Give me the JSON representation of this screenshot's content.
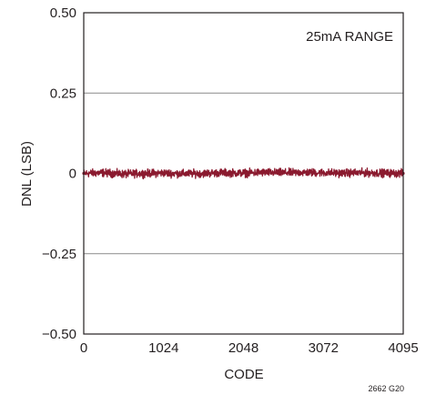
{
  "chart_data": {
    "type": "line",
    "title": "",
    "xlabel": "CODE",
    "ylabel": "DNL (LSB)",
    "xlim": [
      0,
      4095
    ],
    "ylim": [
      -0.5,
      0.5
    ],
    "x_ticks": [
      0,
      1024,
      2048,
      3072,
      4095
    ],
    "x_tick_labels": [
      "0",
      "1024",
      "2048",
      "3072",
      "4095"
    ],
    "y_ticks": [
      0.5,
      0.25,
      0,
      -0.25,
      -0.5
    ],
    "y_tick_labels": [
      "0.50",
      "0.25",
      "0",
      "−0.25",
      "−0.50"
    ],
    "grid": "horizontal",
    "legend": "none",
    "annotation": "25mA RANGE",
    "figure_code": "2662 G20",
    "series": [
      {
        "name": "",
        "color": "#8b1a2f",
        "x": [
          0,
          256,
          512,
          768,
          1024,
          1280,
          1536,
          1792,
          2048,
          2304,
          2560,
          2816,
          3072,
          3328,
          3584,
          3840,
          4095
        ],
        "y": [
          0.0,
          0.002,
          -0.002,
          0.0,
          0.001,
          -0.001,
          0.0,
          0.002,
          0.001,
          0.003,
          0.002,
          0.003,
          0.002,
          0.001,
          0.002,
          0.001,
          0.0
        ]
      }
    ]
  }
}
